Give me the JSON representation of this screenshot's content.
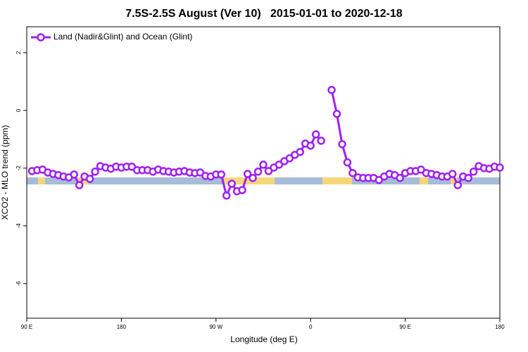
{
  "chart_data": {
    "type": "line",
    "title": "7.5S-2.5S August (Ver 10)   2015-01-01 to 2020-12-18",
    "x_label": "Longitude (deg E)",
    "y_label": "XCO2 - MLO trend (ppm)",
    "legend": "upper left",
    "xlim": [
      90,
      540
    ],
    "ylim": [
      -7.2,
      2.9
    ],
    "xticks": [
      {
        "value": 90,
        "label": "90 E"
      },
      {
        "value": 180,
        "label": "180"
      },
      {
        "value": 270,
        "label": "90 W"
      },
      {
        "value": 360,
        "label": "0"
      },
      {
        "value": 450,
        "label": "90 E"
      },
      {
        "value": 540,
        "label": "180"
      }
    ],
    "yticks": [
      2,
      0,
      -2,
      -4,
      -6
    ],
    "x": [
      95,
      100,
      105,
      110,
      115,
      120,
      125,
      130,
      135,
      140,
      145,
      150,
      155,
      160,
      165,
      170,
      175,
      180,
      185,
      190,
      195,
      200,
      205,
      210,
      215,
      220,
      225,
      230,
      235,
      240,
      245,
      250,
      255,
      260,
      265,
      270,
      275,
      280,
      285,
      290,
      295,
      300,
      305,
      310,
      315,
      320,
      325,
      330,
      335,
      340,
      345,
      350,
      355,
      360,
      365,
      370,
      375,
      380,
      385,
      390,
      395,
      400,
      405,
      410,
      415,
      420,
      425,
      430,
      435,
      440,
      445,
      450,
      455,
      460,
      465,
      470,
      475,
      480,
      485,
      490,
      495,
      500,
      505,
      510,
      515,
      520,
      525,
      530,
      535,
      540
    ],
    "series": [
      {
        "name": "Land (Nadir&Glint) and Ocean (Glint)",
        "color": "#a020f0",
        "values": [
          -2.1,
          -2.07,
          -2.05,
          -2.15,
          -2.2,
          -2.24,
          -2.29,
          -2.32,
          -2.22,
          -2.59,
          -2.29,
          -2.37,
          -2.12,
          -1.93,
          -1.98,
          -2.02,
          -1.95,
          -1.98,
          -1.95,
          -1.95,
          -2.07,
          -2.07,
          -2.07,
          -2.12,
          -2.05,
          -2.1,
          -2.12,
          -2.15,
          -2.12,
          -2.1,
          -2.15,
          -2.17,
          -2.15,
          -2.27,
          -2.29,
          -2.22,
          -2.22,
          -2.95,
          -2.54,
          -2.8,
          -2.76,
          -2.2,
          -2.34,
          -2.12,
          -1.88,
          -2.1,
          -1.98,
          -1.88,
          -1.76,
          -1.66,
          -1.54,
          -1.44,
          -1.15,
          -1.22,
          -0.83,
          -1.05,
          null,
          0.71,
          -0.12,
          -1.17,
          -1.8,
          -2.17,
          -2.32,
          -2.34,
          -2.34,
          -2.34,
          -2.41,
          -2.29,
          -2.2,
          -2.24,
          -2.34,
          -2.17,
          -2.1,
          -2.1,
          -2.05,
          -2.17,
          -2.2,
          -2.24,
          -2.29,
          -2.29,
          -2.2,
          -2.59,
          -2.29,
          -2.34,
          -2.12,
          -1.93,
          -2.0,
          -2.02,
          -1.95,
          -1.98
        ]
      }
    ]
  }
}
